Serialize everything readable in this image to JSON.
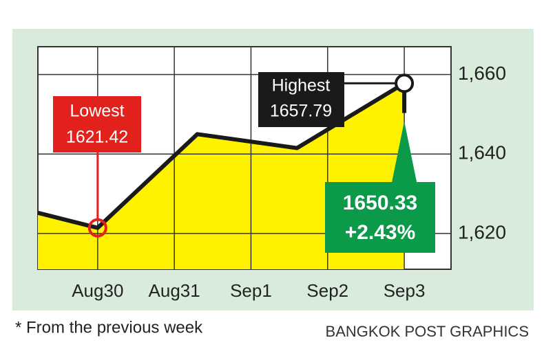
{
  "chart_data": {
    "type": "area-line",
    "x": [
      -0.78,
      0,
      1.3,
      2.6,
      4,
      4
    ],
    "values": [
      1625.2,
      1621.42,
      1645,
      1641.5,
      1657.79,
      1650.33
    ],
    "value_labels": [
      null,
      "1621.42",
      null,
      null,
      "1657.79",
      "1650.33"
    ],
    "annotations": [
      "Lowest",
      "Highest",
      "+2.43%"
    ],
    "xlim": [
      -0.78,
      4.61
    ],
    "xticks": [
      {
        "value": 0,
        "label": "Aug30"
      },
      {
        "value": 1,
        "label": "Aug31"
      },
      {
        "value": 2,
        "label": "Sep1"
      },
      {
        "value": 3,
        "label": "Sep2"
      },
      {
        "value": 4,
        "label": "Sep3"
      }
    ],
    "ylim": [
      1611,
      1667
    ],
    "yticks": [
      {
        "value": 1620,
        "label": "1,620"
      },
      {
        "value": 1640,
        "label": "1,640"
      },
      {
        "value": 1660,
        "label": "1,660"
      }
    ],
    "grid": true,
    "color": "#fff200",
    "line_color": "#1a1a1a",
    "footnote": "* From the previous week",
    "source": "BANGKOK POST GRAPHICS"
  }
}
